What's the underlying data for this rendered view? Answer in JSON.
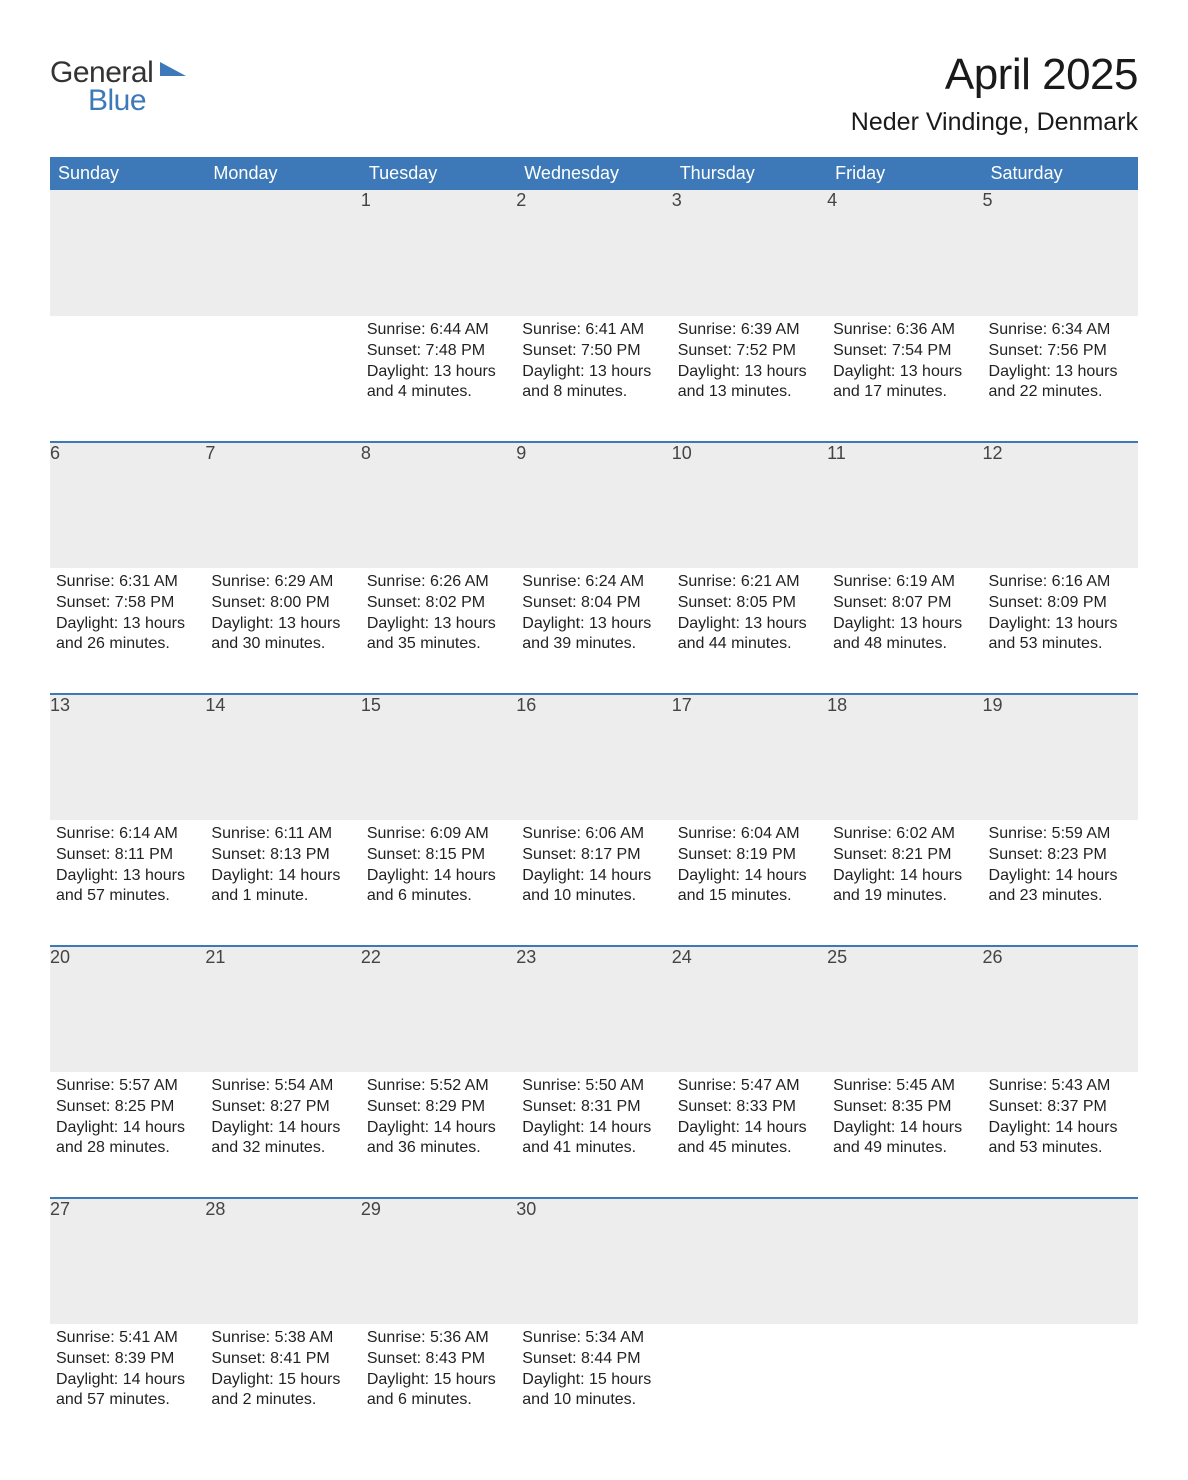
{
  "logo": {
    "word1": "General",
    "word2": "Blue",
    "brand_color": "#3d79b8"
  },
  "title": "April 2025",
  "location": "Neder Vindinge, Denmark",
  "colors": {
    "header_bg": "#3d79b8",
    "header_text": "#ffffff",
    "daynum_bg": "#ededed",
    "week_divider": "#3d79b8",
    "body_text": "#212121",
    "background": "#ffffff"
  },
  "typography": {
    "title_fontsize": 44,
    "location_fontsize": 25,
    "header_fontsize": 18,
    "daynum_fontsize": 18,
    "body_fontsize": 16,
    "font_family": "Arial"
  },
  "calendar": {
    "type": "table",
    "columns": [
      "Sunday",
      "Monday",
      "Tuesday",
      "Wednesday",
      "Thursday",
      "Friday",
      "Saturday"
    ],
    "weeks": [
      [
        null,
        null,
        {
          "n": "1",
          "sunrise": "6:44 AM",
          "sunset": "7:48 PM",
          "daylight_l1": "13 hours",
          "daylight_l2": "and 4 minutes."
        },
        {
          "n": "2",
          "sunrise": "6:41 AM",
          "sunset": "7:50 PM",
          "daylight_l1": "13 hours",
          "daylight_l2": "and 8 minutes."
        },
        {
          "n": "3",
          "sunrise": "6:39 AM",
          "sunset": "7:52 PM",
          "daylight_l1": "13 hours",
          "daylight_l2": "and 13 minutes."
        },
        {
          "n": "4",
          "sunrise": "6:36 AM",
          "sunset": "7:54 PM",
          "daylight_l1": "13 hours",
          "daylight_l2": "and 17 minutes."
        },
        {
          "n": "5",
          "sunrise": "6:34 AM",
          "sunset": "7:56 PM",
          "daylight_l1": "13 hours",
          "daylight_l2": "and 22 minutes."
        }
      ],
      [
        {
          "n": "6",
          "sunrise": "6:31 AM",
          "sunset": "7:58 PM",
          "daylight_l1": "13 hours",
          "daylight_l2": "and 26 minutes."
        },
        {
          "n": "7",
          "sunrise": "6:29 AM",
          "sunset": "8:00 PM",
          "daylight_l1": "13 hours",
          "daylight_l2": "and 30 minutes."
        },
        {
          "n": "8",
          "sunrise": "6:26 AM",
          "sunset": "8:02 PM",
          "daylight_l1": "13 hours",
          "daylight_l2": "and 35 minutes."
        },
        {
          "n": "9",
          "sunrise": "6:24 AM",
          "sunset": "8:04 PM",
          "daylight_l1": "13 hours",
          "daylight_l2": "and 39 minutes."
        },
        {
          "n": "10",
          "sunrise": "6:21 AM",
          "sunset": "8:05 PM",
          "daylight_l1": "13 hours",
          "daylight_l2": "and 44 minutes."
        },
        {
          "n": "11",
          "sunrise": "6:19 AM",
          "sunset": "8:07 PM",
          "daylight_l1": "13 hours",
          "daylight_l2": "and 48 minutes."
        },
        {
          "n": "12",
          "sunrise": "6:16 AM",
          "sunset": "8:09 PM",
          "daylight_l1": "13 hours",
          "daylight_l2": "and 53 minutes."
        }
      ],
      [
        {
          "n": "13",
          "sunrise": "6:14 AM",
          "sunset": "8:11 PM",
          "daylight_l1": "13 hours",
          "daylight_l2": "and 57 minutes."
        },
        {
          "n": "14",
          "sunrise": "6:11 AM",
          "sunset": "8:13 PM",
          "daylight_l1": "14 hours",
          "daylight_l2": "and 1 minute."
        },
        {
          "n": "15",
          "sunrise": "6:09 AM",
          "sunset": "8:15 PM",
          "daylight_l1": "14 hours",
          "daylight_l2": "and 6 minutes."
        },
        {
          "n": "16",
          "sunrise": "6:06 AM",
          "sunset": "8:17 PM",
          "daylight_l1": "14 hours",
          "daylight_l2": "and 10 minutes."
        },
        {
          "n": "17",
          "sunrise": "6:04 AM",
          "sunset": "8:19 PM",
          "daylight_l1": "14 hours",
          "daylight_l2": "and 15 minutes."
        },
        {
          "n": "18",
          "sunrise": "6:02 AM",
          "sunset": "8:21 PM",
          "daylight_l1": "14 hours",
          "daylight_l2": "and 19 minutes."
        },
        {
          "n": "19",
          "sunrise": "5:59 AM",
          "sunset": "8:23 PM",
          "daylight_l1": "14 hours",
          "daylight_l2": "and 23 minutes."
        }
      ],
      [
        {
          "n": "20",
          "sunrise": "5:57 AM",
          "sunset": "8:25 PM",
          "daylight_l1": "14 hours",
          "daylight_l2": "and 28 minutes."
        },
        {
          "n": "21",
          "sunrise": "5:54 AM",
          "sunset": "8:27 PM",
          "daylight_l1": "14 hours",
          "daylight_l2": "and 32 minutes."
        },
        {
          "n": "22",
          "sunrise": "5:52 AM",
          "sunset": "8:29 PM",
          "daylight_l1": "14 hours",
          "daylight_l2": "and 36 minutes."
        },
        {
          "n": "23",
          "sunrise": "5:50 AM",
          "sunset": "8:31 PM",
          "daylight_l1": "14 hours",
          "daylight_l2": "and 41 minutes."
        },
        {
          "n": "24",
          "sunrise": "5:47 AM",
          "sunset": "8:33 PM",
          "daylight_l1": "14 hours",
          "daylight_l2": "and 45 minutes."
        },
        {
          "n": "25",
          "sunrise": "5:45 AM",
          "sunset": "8:35 PM",
          "daylight_l1": "14 hours",
          "daylight_l2": "and 49 minutes."
        },
        {
          "n": "26",
          "sunrise": "5:43 AM",
          "sunset": "8:37 PM",
          "daylight_l1": "14 hours",
          "daylight_l2": "and 53 minutes."
        }
      ],
      [
        {
          "n": "27",
          "sunrise": "5:41 AM",
          "sunset": "8:39 PM",
          "daylight_l1": "14 hours",
          "daylight_l2": "and 57 minutes."
        },
        {
          "n": "28",
          "sunrise": "5:38 AM",
          "sunset": "8:41 PM",
          "daylight_l1": "15 hours",
          "daylight_l2": "and 2 minutes."
        },
        {
          "n": "29",
          "sunrise": "5:36 AM",
          "sunset": "8:43 PM",
          "daylight_l1": "15 hours",
          "daylight_l2": "and 6 minutes."
        },
        {
          "n": "30",
          "sunrise": "5:34 AM",
          "sunset": "8:44 PM",
          "daylight_l1": "15 hours",
          "daylight_l2": "and 10 minutes."
        },
        null,
        null,
        null
      ]
    ],
    "labels": {
      "sunrise_prefix": "Sunrise: ",
      "sunset_prefix": "Sunset: ",
      "daylight_prefix": "Daylight: "
    }
  }
}
